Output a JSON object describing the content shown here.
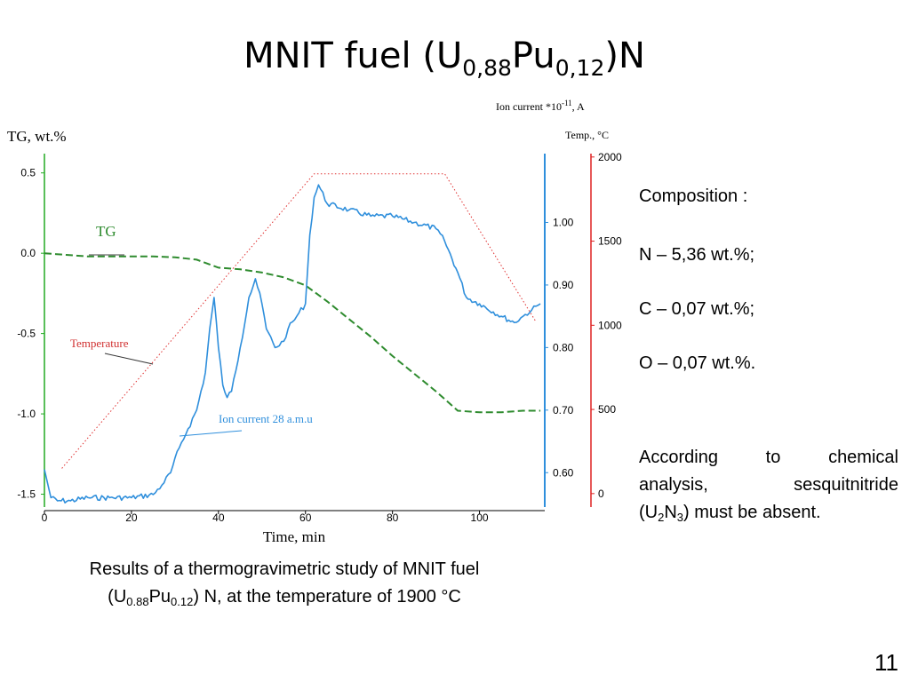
{
  "title": {
    "main": "MNIT fuel (U",
    "sub1": "0,88",
    "mid": "Pu",
    "sub2": "0,12",
    "end": ")N"
  },
  "colors": {
    "tg": "#2e8b2e",
    "temperature": "#e03030",
    "ion": "#2f8fdc",
    "axis_left": "#22aa22",
    "axis_ion": "#2f8fdc",
    "axis_temp": "#dd2222"
  },
  "chart_data": {
    "type": "line",
    "xlabel": "Time, min",
    "x_ticks": [
      0,
      20,
      40,
      60,
      80,
      100
    ],
    "xlim": [
      0,
      115
    ],
    "axes": {
      "left": {
        "label": "TG, wt.%",
        "ticks": [
          "0.5",
          "0.0",
          "-0.5",
          "-1.0",
          "-1.5"
        ],
        "tick_values": [
          0.5,
          0.0,
          -0.5,
          -1.0,
          -1.5
        ],
        "ylim": [
          -1.58,
          0.62
        ]
      },
      "ion": {
        "label": "Ion current *10-11, A",
        "label_main": "Ion current *10",
        "label_exp": "-11",
        "label_unit": ", A",
        "ticks": [
          "1.00",
          "0.90",
          "0.80",
          "0.70",
          "0.60"
        ],
        "tick_values": [
          1.0,
          0.9,
          0.8,
          0.7,
          0.6
        ],
        "ylim": [
          0.545,
          1.11
        ]
      },
      "temp": {
        "label": "Temp., °C",
        "ticks": [
          "2000",
          "1500",
          "1000",
          "500",
          "0"
        ],
        "tick_values": [
          2000,
          1500,
          1000,
          500,
          0
        ],
        "ylim": [
          -80,
          2020
        ]
      }
    },
    "annotations": {
      "tg": "TG",
      "temperature": "Temperature",
      "ion": "Ion current 28 a.m.u"
    },
    "series": [
      {
        "name": "TG",
        "axis": "left",
        "x": [
          0,
          5,
          10,
          15,
          20,
          25,
          30,
          35,
          40,
          45,
          50,
          55,
          60,
          65,
          70,
          75,
          80,
          85,
          90,
          95,
          100,
          105,
          110,
          114
        ],
        "values": [
          0.0,
          -0.01,
          -0.02,
          -0.02,
          -0.02,
          -0.02,
          -0.025,
          -0.04,
          -0.09,
          -0.1,
          -0.12,
          -0.15,
          -0.2,
          -0.3,
          -0.41,
          -0.52,
          -0.64,
          -0.75,
          -0.86,
          -0.98,
          -0.99,
          -0.99,
          -0.98,
          -0.98
        ]
      },
      {
        "name": "Temperature",
        "axis": "temp",
        "x": [
          4,
          62,
          92,
          113
        ],
        "values": [
          150,
          1900,
          1900,
          1020
        ]
      },
      {
        "name": "Ion current 28 a.m.u",
        "axis": "ion",
        "x": [
          0,
          1.5,
          3,
          6,
          10,
          15,
          20,
          25,
          27,
          29,
          31,
          33,
          35,
          37,
          38,
          39,
          40,
          41,
          42,
          43,
          45,
          47,
          48.5,
          50,
          51,
          53,
          55,
          56,
          58,
          60,
          61,
          62,
          63,
          65,
          70,
          75,
          80,
          85,
          90,
          92,
          95,
          97,
          100,
          105,
          108,
          110,
          112,
          114
        ],
        "values": [
          0.605,
          0.56,
          0.555,
          0.555,
          0.56,
          0.56,
          0.56,
          0.565,
          0.58,
          0.6,
          0.64,
          0.67,
          0.7,
          0.76,
          0.83,
          0.88,
          0.8,
          0.74,
          0.72,
          0.73,
          0.8,
          0.88,
          0.91,
          0.87,
          0.83,
          0.8,
          0.81,
          0.83,
          0.85,
          0.87,
          0.98,
          1.04,
          1.06,
          1.03,
          1.02,
          1.01,
          1.01,
          1.0,
          0.99,
          0.97,
          0.92,
          0.88,
          0.87,
          0.85,
          0.84,
          0.85,
          0.86,
          0.87
        ]
      }
    ]
  },
  "composition": {
    "heading": "Composition :",
    "n": "N – 5,36 wt.%;",
    "c": "C – 0,07 wt.%;",
    "o": "O – 0,07 wt.%."
  },
  "note": {
    "w1": "According",
    "w2": "to",
    "w3": "chemical",
    "w4": "analysis,",
    "w5": "sesquitnitride",
    "l3_a": "(U",
    "l3_s1": "2",
    "l3_b": "N",
    "l3_s2": "3",
    "l3_c": ") must be absent."
  },
  "caption": {
    "line1": "Results of a thermogravimetric study of MNIT fuel",
    "l2_a": "(U",
    "l2_s1": "0.88",
    "l2_b": "Pu",
    "l2_s2": "0.12",
    "l2_c": ") N, at the temperature of 1900 °C"
  },
  "page_number": "11"
}
